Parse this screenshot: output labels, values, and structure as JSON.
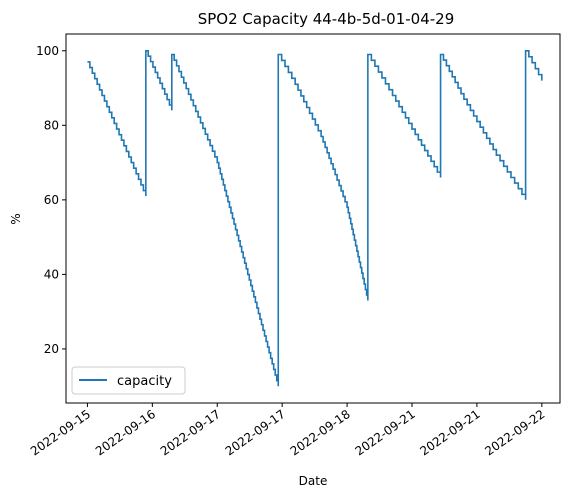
{
  "chart_data": {
    "type": "line",
    "title": "SPO2 Capacity 44-4b-5d-01-04-29",
    "xlabel": "Date",
    "ylabel": "%",
    "x_tick_labels": [
      "2022-09-15",
      "2022-09-16",
      "2022-09-17",
      "2022-09-17",
      "2022-09-18",
      "2022-09-21",
      "2022-09-21",
      "2022-09-22"
    ],
    "xlim": [
      -0.33,
      7.28
    ],
    "ylim": [
      5.5,
      104.5
    ],
    "y_ticks": [
      20,
      40,
      60,
      80,
      100
    ],
    "grid": false,
    "legend_position": "lower-left",
    "series": [
      {
        "name": "capacity",
        "color": "#1f77b4",
        "x": [
          0.0,
          0.9,
          0.9,
          1.3,
          1.3,
          2.0,
          2.94,
          2.94,
          3.2,
          3.6,
          4.0,
          4.32,
          4.32,
          4.7,
          5.0,
          5.44,
          5.44,
          5.8,
          6.3,
          6.75,
          6.75,
          7.0
        ],
        "y": [
          97,
          61,
          100,
          84,
          99,
          70,
          10,
          99,
          91,
          77,
          58,
          33,
          99,
          88,
          79,
          66,
          99,
          87,
          72,
          60,
          100,
          92
        ]
      }
    ]
  }
}
